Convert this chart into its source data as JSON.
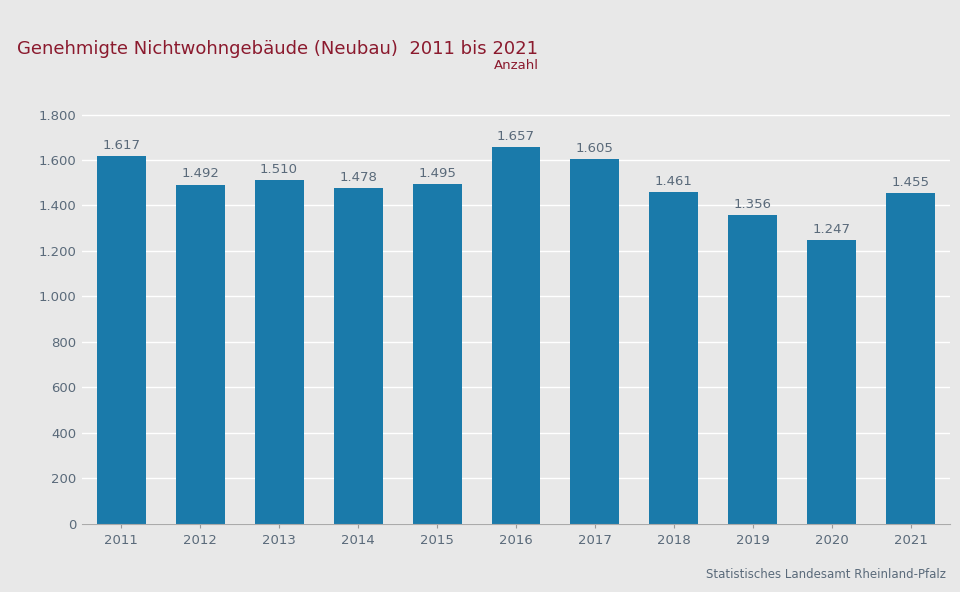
{
  "title": "Genehmigte Nichtwohngebäude (Neubau)  2011 bis 2021",
  "ylabel_label": "Anzahl",
  "years": [
    2011,
    2012,
    2013,
    2014,
    2015,
    2016,
    2017,
    2018,
    2019,
    2020,
    2021
  ],
  "values": [
    1617,
    1492,
    1510,
    1478,
    1495,
    1657,
    1605,
    1461,
    1356,
    1247,
    1455
  ],
  "bar_color": "#1a7aaa",
  "title_color": "#8b1a2e",
  "ylabel_color": "#8b1a2e",
  "tick_color": "#5a6a7a",
  "background_color": "#e8e8e8",
  "plot_background_color": "#e8e8e8",
  "top_bar_color": "#7a1530",
  "footer_text": "Statistisches Landesamt Rheinland-Pfalz",
  "ylim": [
    0,
    1900
  ],
  "yticks": [
    0,
    200,
    400,
    600,
    800,
    1000,
    1200,
    1400,
    1600,
    1800
  ],
  "ytick_labels": [
    "0",
    "200",
    "400",
    "600",
    "800",
    "1.000",
    "1.200",
    "1.400",
    "1.600",
    "1.800"
  ],
  "title_fontsize": 13,
  "label_fontsize": 9.5,
  "tick_fontsize": 9.5,
  "footer_fontsize": 8.5,
  "ylabel_fontsize": 9.5
}
